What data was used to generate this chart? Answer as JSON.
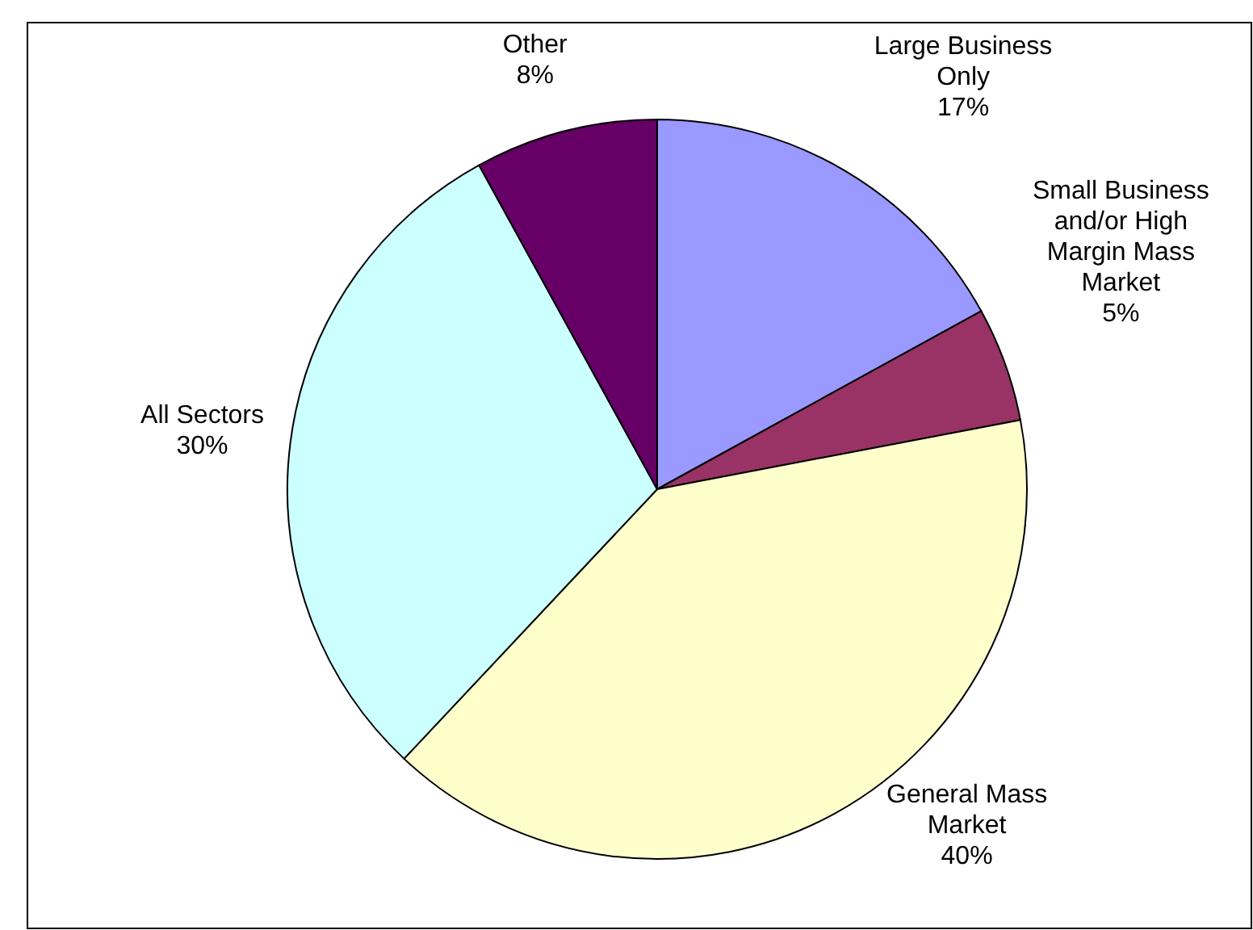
{
  "chart_data": {
    "type": "pie",
    "categories": [
      "Large Business\nOnly",
      "Small Business\nand/or High\nMargin Mass\nMarket",
      "General Mass\nMarket",
      "All Sectors",
      "Other"
    ],
    "values": [
      17,
      5,
      40,
      30,
      8
    ],
    "colors": [
      "#9999ff",
      "#993366",
      "#ffffcc",
      "#ccffff",
      "#660066"
    ],
    "value_labels": [
      "17%",
      "5%",
      "40%",
      "30%",
      "8%"
    ]
  }
}
